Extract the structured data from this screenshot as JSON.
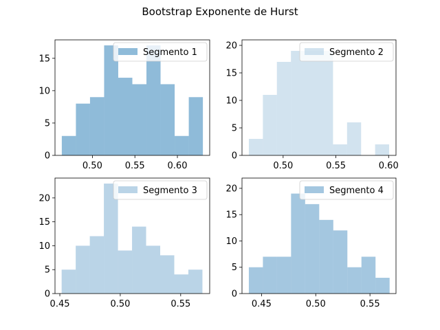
{
  "figure": {
    "title": "Bootstrap Exponente de Hurst"
  },
  "chart_data": [
    {
      "type": "bar",
      "subtype": "histogram",
      "series_name": "Segmento 1",
      "color": "#1f77b4",
      "alpha": 0.5,
      "legend_position": "upper-right",
      "bin_edges": [
        0.464,
        0.4806,
        0.4972,
        0.5138,
        0.5304,
        0.547,
        0.5636,
        0.5802,
        0.5968,
        0.6134,
        0.63
      ],
      "counts": [
        3,
        8,
        9,
        17,
        12,
        11,
        17,
        11,
        3,
        9
      ],
      "xlim": [
        0.456,
        0.638
      ],
      "ylim": [
        0,
        17.85
      ],
      "xticks": [
        0.5,
        0.55,
        0.6
      ],
      "xtick_labels": [
        "0.50",
        "0.55",
        "0.60"
      ],
      "yticks": [
        0,
        5,
        10,
        15
      ],
      "ytick_labels": [
        "0",
        "5",
        "10",
        "15"
      ]
    },
    {
      "type": "bar",
      "subtype": "histogram",
      "series_name": "Segmento 2",
      "color": "#a6c8e0",
      "alpha": 0.5,
      "legend_position": "upper-right",
      "bin_edges": [
        0.4675,
        0.4808,
        0.4941,
        0.5074,
        0.5207,
        0.534,
        0.5473,
        0.5606,
        0.5739,
        0.5872,
        0.6005
      ],
      "counts": [
        3,
        11,
        17,
        19,
        19,
        19,
        2,
        6,
        0,
        2
      ],
      "xlim": [
        0.461,
        0.607
      ],
      "ylim": [
        0,
        21
      ],
      "xticks": [
        0.5,
        0.55,
        0.6
      ],
      "xtick_labels": [
        "0.50",
        "0.55",
        "0.60"
      ],
      "yticks": [
        0,
        5,
        10,
        15,
        20
      ],
      "ytick_labels": [
        "0",
        "5",
        "10",
        "15",
        "20"
      ]
    },
    {
      "type": "bar",
      "subtype": "histogram",
      "series_name": "Segmento 3",
      "color": "#75a9cf",
      "alpha": 0.5,
      "legend_position": "upper-right",
      "bin_edges": [
        0.4515,
        0.46315,
        0.4748,
        0.48645,
        0.4981,
        0.50975,
        0.5214,
        0.53305,
        0.5447,
        0.55635,
        0.568
      ],
      "counts": [
        5,
        10,
        12,
        23,
        9,
        14,
        10,
        8,
        4,
        5
      ],
      "xlim": [
        0.446,
        0.574
      ],
      "ylim": [
        0,
        24.15
      ],
      "xticks": [
        0.45,
        0.5,
        0.55
      ],
      "xtick_labels": [
        "0.45",
        "0.50",
        "0.55"
      ],
      "yticks": [
        0,
        5,
        10,
        15,
        20
      ],
      "ytick_labels": [
        "0",
        "5",
        "10",
        "15",
        "20"
      ]
    },
    {
      "type": "bar",
      "subtype": "histogram",
      "series_name": "Segmento 4",
      "color": "#4a90c2",
      "alpha": 0.5,
      "legend_position": "upper-right",
      "bin_edges": [
        0.4383,
        0.45128,
        0.46426,
        0.47724,
        0.49022,
        0.5032,
        0.51618,
        0.52916,
        0.54214,
        0.55512,
        0.5681
      ],
      "counts": [
        5,
        7,
        7,
        19,
        17,
        14,
        12,
        5,
        7,
        3
      ],
      "xlim": [
        0.432,
        0.574
      ],
      "ylim": [
        0,
        21.95
      ],
      "xticks": [
        0.45,
        0.5,
        0.55
      ],
      "xtick_labels": [
        "0.45",
        "0.50",
        "0.55"
      ],
      "yticks": [
        0,
        5,
        10,
        15,
        20
      ],
      "ytick_labels": [
        "0",
        "5",
        "10",
        "15",
        "20"
      ]
    }
  ]
}
